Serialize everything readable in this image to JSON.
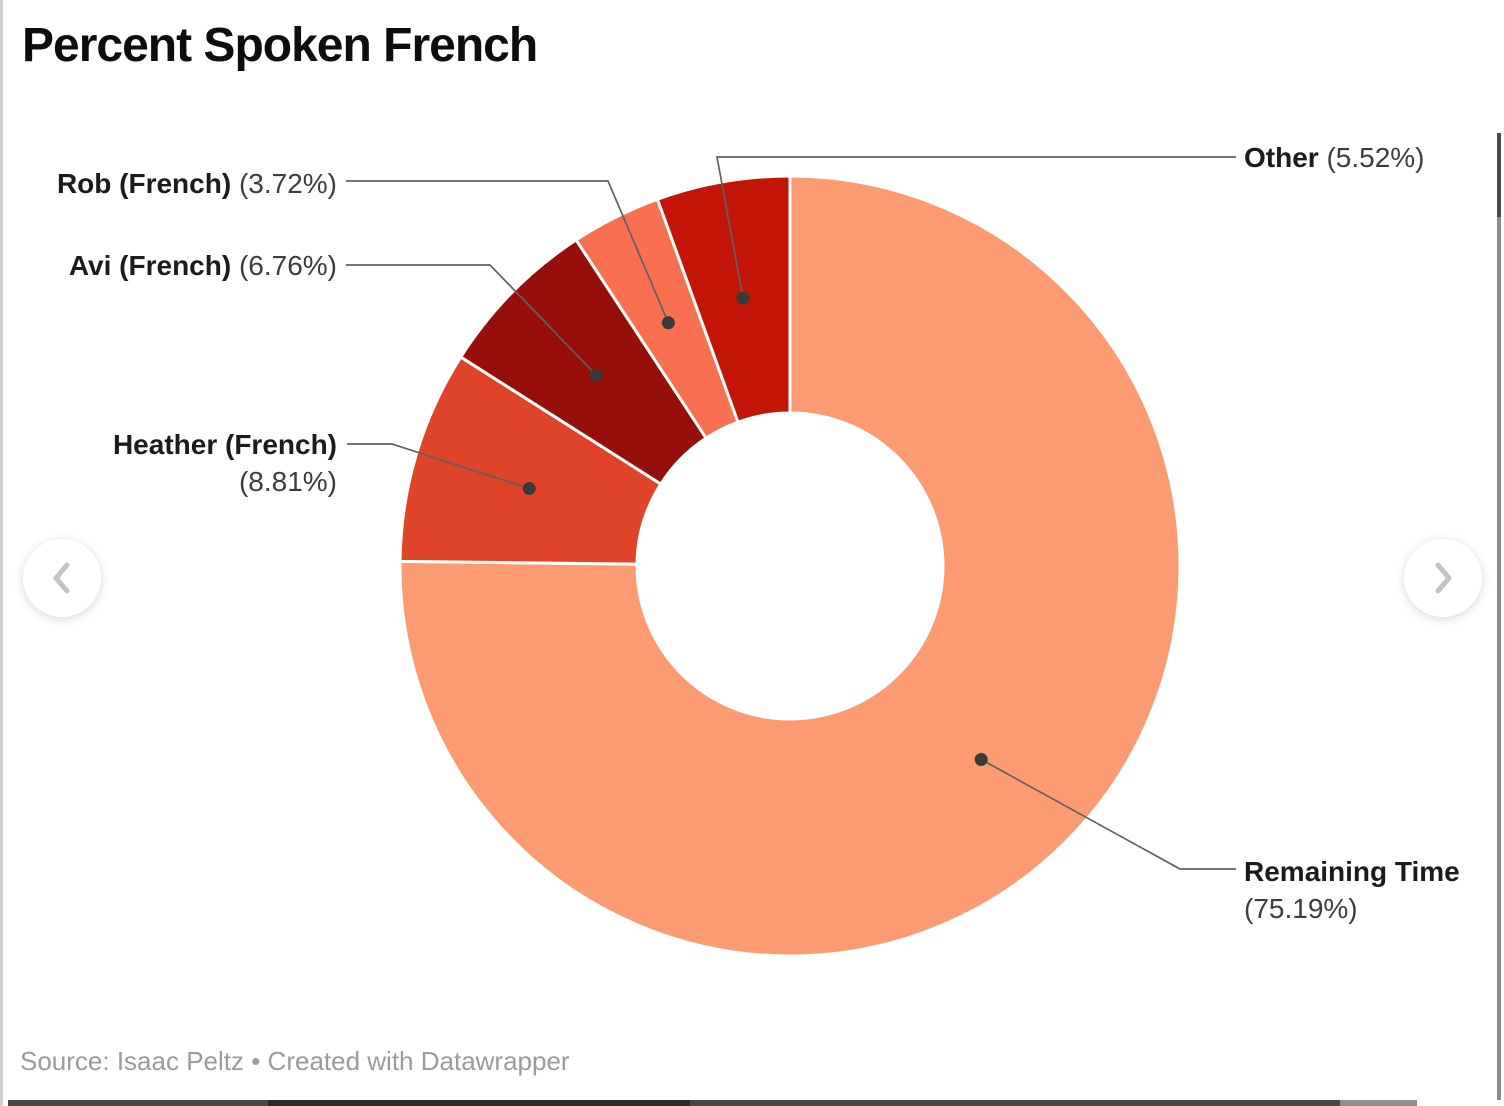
{
  "title": "Percent Spoken French",
  "source": "Source: Isaac Peltz • Created with Datawrapper",
  "callouts": {
    "rob": {
      "name": "Rob (French)",
      "pct": "(3.72%)"
    },
    "avi": {
      "name": "Avi (French)",
      "pct": "(6.76%)"
    },
    "heather": {
      "name": "Heather (French)",
      "pct": "(8.81%)"
    },
    "other": {
      "name": "Other",
      "pct": "(5.52%)"
    },
    "remaining": {
      "name": "Remaining Time",
      "pct": "(75.19%)"
    }
  },
  "icons": {
    "prev": "chevron-left",
    "next": "chevron-right"
  },
  "colors": {
    "leader_line": "#606060",
    "leader_dot": "#3a3a3a",
    "slice_divider": "#ffffff"
  },
  "chart_data": {
    "type": "pie",
    "subtype": "donut",
    "title": "Percent Spoken French",
    "unit": "%",
    "total": 100,
    "order": "clockwise-from-top",
    "legend_position": "callout-labels",
    "slices": [
      {
        "key": "remaining",
        "label": "Remaining Time",
        "value": 75.19,
        "color": "#FC9B72"
      },
      {
        "key": "heather",
        "label": "Heather (French)",
        "value": 8.81,
        "color": "#E04428"
      },
      {
        "key": "avi",
        "label": "Avi (French)",
        "value": 6.76,
        "color": "#960F0A"
      },
      {
        "key": "rob",
        "label": "Rob (French)",
        "value": 3.72,
        "color": "#F97050"
      },
      {
        "key": "other",
        "label": "Other",
        "value": 5.52,
        "color": "#C21508"
      }
    ]
  }
}
